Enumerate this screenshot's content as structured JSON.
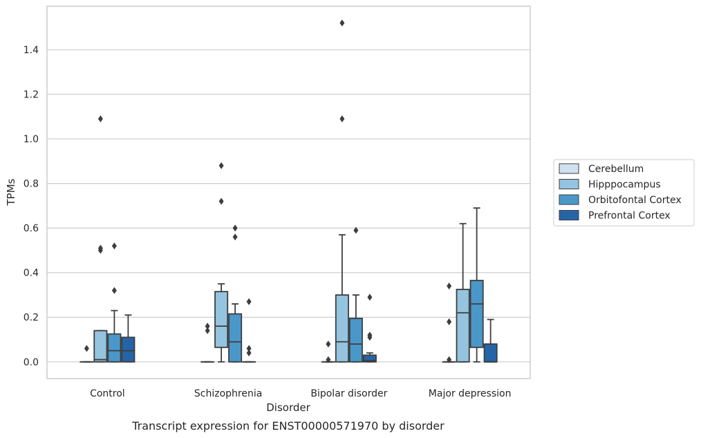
{
  "caption": "Transcript expression for ENST00000571970 by disorder",
  "chart_data": {
    "type": "box",
    "xlabel": "Disorder",
    "ylabel": "TPMs",
    "ylim": [
      -0.075,
      1.595
    ],
    "y_ticks": [
      0.0,
      0.2,
      0.4,
      0.6,
      0.8,
      1.0,
      1.2,
      1.4
    ],
    "y_tick_labels": [
      "0.0",
      "0.2",
      "0.4",
      "0.6",
      "0.8",
      "1.0",
      "1.2",
      "1.4"
    ],
    "categories": [
      "Control",
      "Schizophrenia",
      "Bipolar disorder",
      "Major depression"
    ],
    "grid": "horizontal",
    "legend_position": "right",
    "series": [
      {
        "name": "Cerebellum",
        "color": "#d0e1f2",
        "boxes": [
          {
            "whislo": 0,
            "q1": 0,
            "med": 0,
            "q3": 0,
            "whishi": 0,
            "fliers": [
              0.06
            ]
          },
          {
            "whislo": 0,
            "q1": 0,
            "med": 0,
            "q3": 0,
            "whishi": 0,
            "fliers": [
              0.14,
              0.16
            ]
          },
          {
            "whislo": 0,
            "q1": 0,
            "med": 0,
            "q3": 0,
            "whishi": 0,
            "fliers": [
              0.01,
              0.08
            ]
          },
          {
            "whislo": 0,
            "q1": 0,
            "med": 0,
            "q3": 0,
            "whishi": 0,
            "fliers": [
              0.01,
              0.18,
              0.34
            ]
          }
        ]
      },
      {
        "name": "Hipppocampus",
        "color": "#94c4df",
        "boxes": [
          {
            "whislo": 0,
            "q1": 0,
            "med": 0.01,
            "q3": 0.14,
            "whishi": 0.14,
            "fliers": [
              0.5,
              0.51,
              1.09
            ]
          },
          {
            "whislo": 0,
            "q1": 0.065,
            "med": 0.16,
            "q3": 0.315,
            "whishi": 0.35,
            "fliers": [
              0.72,
              0.88
            ]
          },
          {
            "whislo": 0,
            "q1": 0,
            "med": 0.09,
            "q3": 0.3,
            "whishi": 0.57,
            "fliers": [
              1.09,
              1.52
            ]
          },
          {
            "whislo": 0,
            "q1": 0,
            "med": 0.22,
            "q3": 0.325,
            "whishi": 0.62,
            "fliers": []
          }
        ]
      },
      {
        "name": "Orbitofontal Cortex",
        "color": "#4a98c9",
        "boxes": [
          {
            "whislo": 0,
            "q1": 0,
            "med": 0.05,
            "q3": 0.125,
            "whishi": 0.23,
            "fliers": [
              0.32,
              0.52
            ]
          },
          {
            "whislo": 0,
            "q1": 0,
            "med": 0.09,
            "q3": 0.215,
            "whishi": 0.26,
            "fliers": [
              0.56,
              0.6
            ]
          },
          {
            "whislo": 0,
            "q1": 0,
            "med": 0.08,
            "q3": 0.195,
            "whishi": 0.3,
            "fliers": [
              0.59
            ]
          },
          {
            "whislo": 0,
            "q1": 0.065,
            "med": 0.26,
            "q3": 0.365,
            "whishi": 0.69,
            "fliers": []
          }
        ]
      },
      {
        "name": "Prefrontal Cortex",
        "color": "#2664a8",
        "boxes": [
          {
            "whislo": 0,
            "q1": 0,
            "med": 0.05,
            "q3": 0.11,
            "whishi": 0.21,
            "fliers": []
          },
          {
            "whislo": 0,
            "q1": 0,
            "med": 0,
            "q3": 0,
            "whishi": 0,
            "fliers": [
              0.04,
              0.06,
              0.27
            ]
          },
          {
            "whislo": 0,
            "q1": 0,
            "med": 0.005,
            "q3": 0.03,
            "whishi": 0.04,
            "fliers": [
              0.11,
              0.12,
              0.29
            ]
          },
          {
            "whislo": 0,
            "q1": 0,
            "med": 0,
            "q3": 0.08,
            "whishi": 0.19,
            "fliers": []
          }
        ]
      }
    ]
  }
}
